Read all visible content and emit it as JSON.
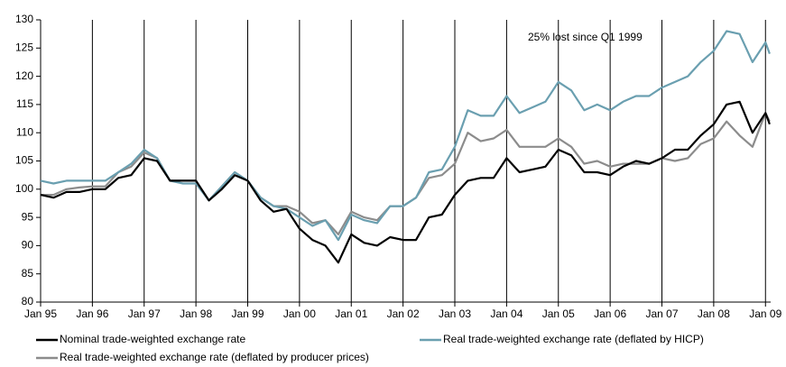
{
  "chart_data": {
    "type": "line",
    "annotation": "25% lost since Q1 1999",
    "x": [
      1995,
      1995.25,
      1995.5,
      1995.75,
      1996,
      1996.25,
      1996.5,
      1996.75,
      1997,
      1997.25,
      1997.5,
      1997.75,
      1998,
      1998.25,
      1998.5,
      1998.75,
      1999,
      1999.25,
      1999.5,
      1999.75,
      2000,
      2000.25,
      2000.5,
      2000.75,
      2001,
      2001.25,
      2001.5,
      2001.75,
      2002,
      2002.25,
      2002.5,
      2002.75,
      2003,
      2003.25,
      2003.5,
      2003.75,
      2004,
      2004.25,
      2004.5,
      2004.75,
      2005,
      2005.25,
      2005.5,
      2005.75,
      2006,
      2006.25,
      2006.5,
      2006.75,
      2007,
      2007.25,
      2007.5,
      2007.75,
      2008,
      2008.25,
      2008.5,
      2008.75,
      2009,
      2009.08
    ],
    "series": [
      {
        "name": "Nominal trade-weighted exchange rate",
        "color": "#000000",
        "values": [
          99,
          98.5,
          99.5,
          99.5,
          100,
          100,
          102,
          102.5,
          105.5,
          105,
          101.5,
          101.5,
          101.5,
          98,
          100,
          102.5,
          101.5,
          98,
          96,
          96.5,
          93,
          91,
          90,
          87,
          92,
          90.5,
          90,
          91.5,
          91,
          91,
          95,
          95.5,
          99,
          101.5,
          102,
          102,
          105.5,
          103,
          103.5,
          104,
          107,
          106,
          103,
          103,
          102.5,
          104,
          105,
          104.5,
          105.5,
          107,
          107,
          109.5,
          111.5,
          115,
          115.5,
          110,
          113.5,
          111.5
        ]
      },
      {
        "name": "Real trade-weighted exchange rate (deflated by HICP)",
        "color": "#6a9fb0",
        "values": [
          101.5,
          101,
          101.5,
          101.5,
          101.5,
          101.5,
          103,
          104.5,
          107,
          105.5,
          101.5,
          101,
          101,
          98,
          100.5,
          103,
          101.5,
          98.5,
          97,
          96.5,
          95,
          93.5,
          94.5,
          91,
          95.5,
          94.5,
          94,
          97,
          97,
          98.5,
          103,
          103.5,
          107.5,
          114,
          113,
          113,
          116.5,
          113.5,
          114.5,
          115.5,
          119,
          117.5,
          114,
          115,
          114,
          115.5,
          116.5,
          116.5,
          118,
          119,
          120,
          122.5,
          124.5,
          128,
          127.5,
          122.5,
          126,
          124
        ]
      },
      {
        "name": "Real trade-weighted exchange rate (deflated by producer prices)",
        "color": "#8c8c8c",
        "values": [
          99,
          99,
          100,
          100.3,
          100.5,
          100.5,
          103,
          104,
          106.5,
          105.5,
          101.5,
          101.5,
          101.5,
          98,
          100.5,
          103,
          101.5,
          98.5,
          97,
          97,
          96,
          94,
          94.5,
          92,
          96,
          95,
          94.5,
          97,
          97,
          98.5,
          102,
          102.5,
          104.5,
          110,
          108.5,
          109,
          110.5,
          107.5,
          107.5,
          107.5,
          109,
          107.5,
          104.5,
          105,
          104,
          104.5,
          104.5,
          104.5,
          105.5,
          105,
          105.5,
          108,
          109,
          112,
          109.5,
          107.5,
          113.5,
          112
        ]
      }
    ],
    "xlim": [
      1995,
      2009.1
    ],
    "xticks": [
      {
        "value": 1995,
        "label": "Jan 95"
      },
      {
        "value": 1996,
        "label": "Jan 96"
      },
      {
        "value": 1997,
        "label": "Jan 97"
      },
      {
        "value": 1998,
        "label": "Jan 98"
      },
      {
        "value": 1999,
        "label": "Jan 99"
      },
      {
        "value": 2000,
        "label": "Jan 00"
      },
      {
        "value": 2001,
        "label": "Jan 01"
      },
      {
        "value": 2002,
        "label": "Jan 02"
      },
      {
        "value": 2003,
        "label": "Jan 03"
      },
      {
        "value": 2004,
        "label": "Jan 04"
      },
      {
        "value": 2005,
        "label": "Jan 05"
      },
      {
        "value": 2006,
        "label": "Jan 06"
      },
      {
        "value": 2007,
        "label": "Jan 07"
      },
      {
        "value": 2008,
        "label": "Jan 08"
      },
      {
        "value": 2009,
        "label": "Jan 09"
      }
    ],
    "ylim": [
      80,
      130
    ],
    "yticks": [
      80,
      85,
      90,
      95,
      100,
      105,
      110,
      115,
      120,
      125,
      130
    ],
    "grid": true
  }
}
